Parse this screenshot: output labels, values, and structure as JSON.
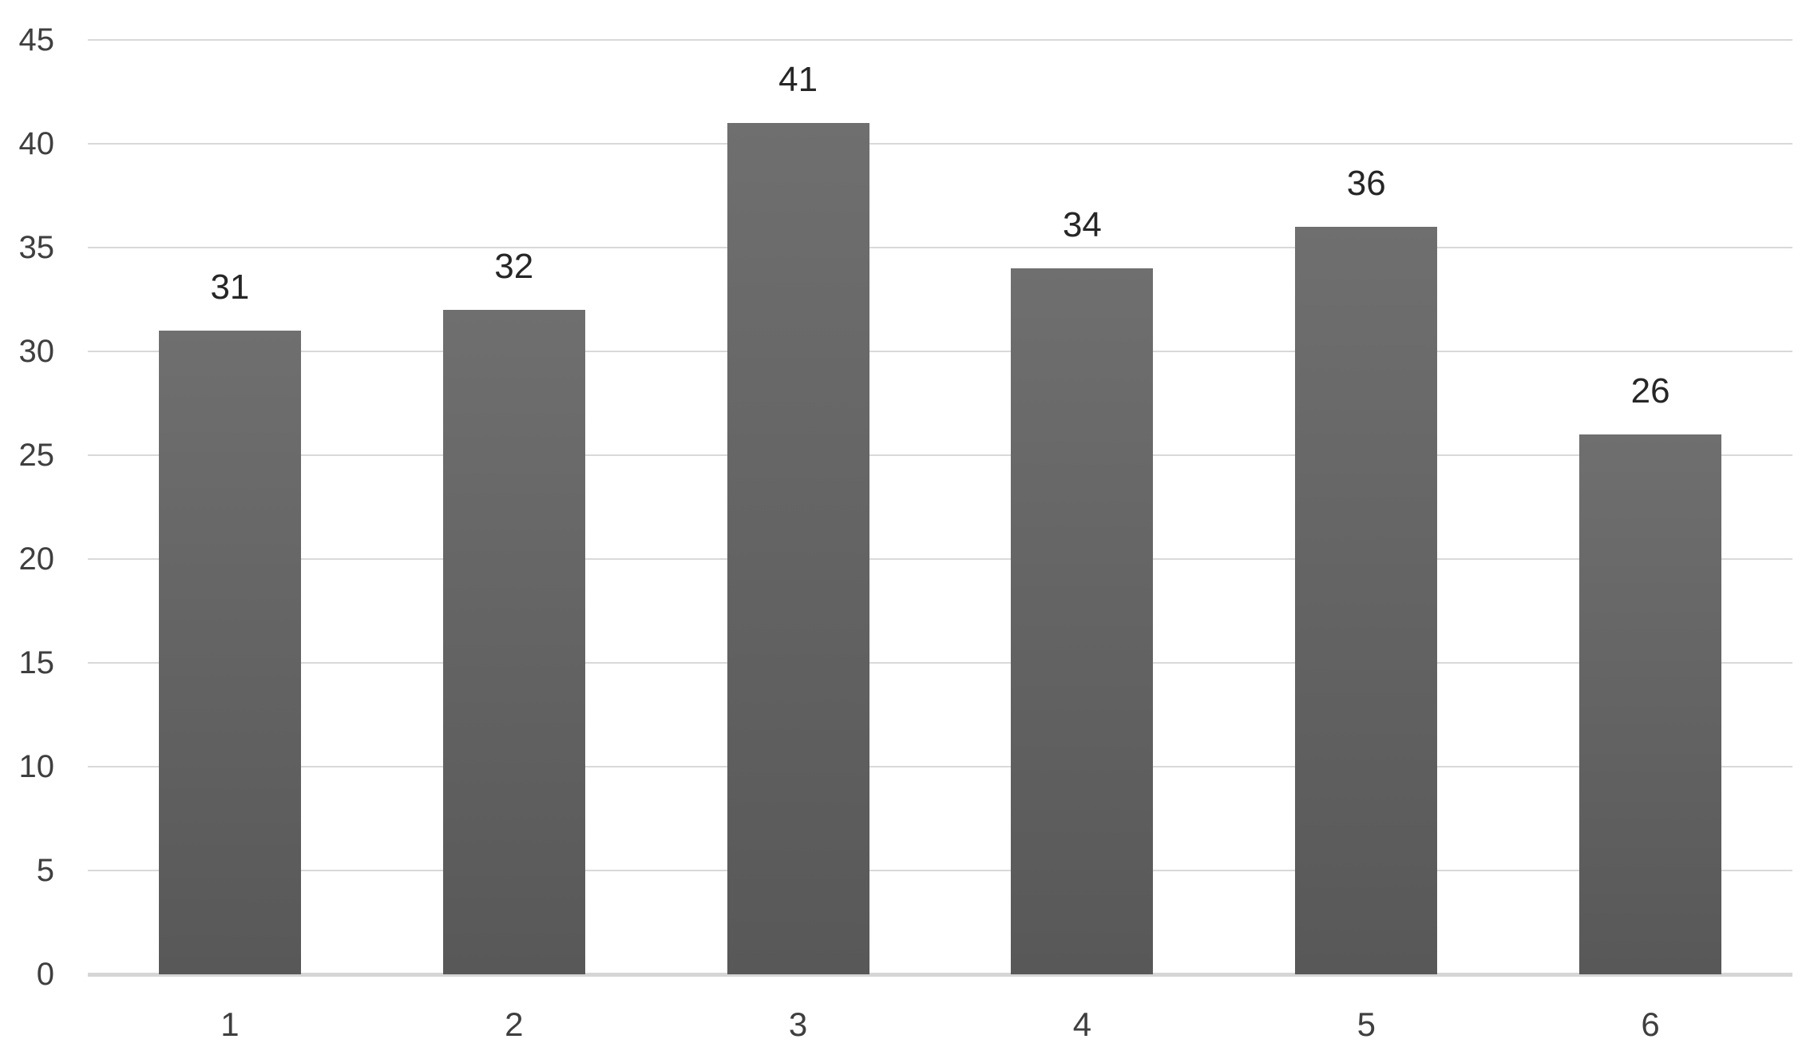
{
  "chart_data": {
    "type": "bar",
    "categories": [
      "1",
      "2",
      "3",
      "4",
      "5",
      "6"
    ],
    "values": [
      31,
      32,
      41,
      34,
      36,
      26
    ],
    "data_labels": [
      "31",
      "32",
      "41",
      "34",
      "36",
      "26"
    ],
    "yticks": [
      0,
      5,
      10,
      15,
      20,
      25,
      30,
      35,
      40,
      45
    ],
    "ytick_labels": [
      "0",
      "5",
      "10",
      "15",
      "20",
      "25",
      "30",
      "35",
      "40",
      "45"
    ],
    "ylim": [
      0,
      45
    ],
    "grid": "horizontal",
    "legend": "none",
    "colors": {
      "bar_top": "#6f6f6f",
      "bar_bottom": "#585858",
      "gridline": "#d9d9d9",
      "baseline": "#d6d6d6",
      "ytick_label": "#3f3f3f",
      "xtick_label": "#3f3f3f",
      "data_label": "#262626",
      "background": "#ffffff"
    }
  }
}
